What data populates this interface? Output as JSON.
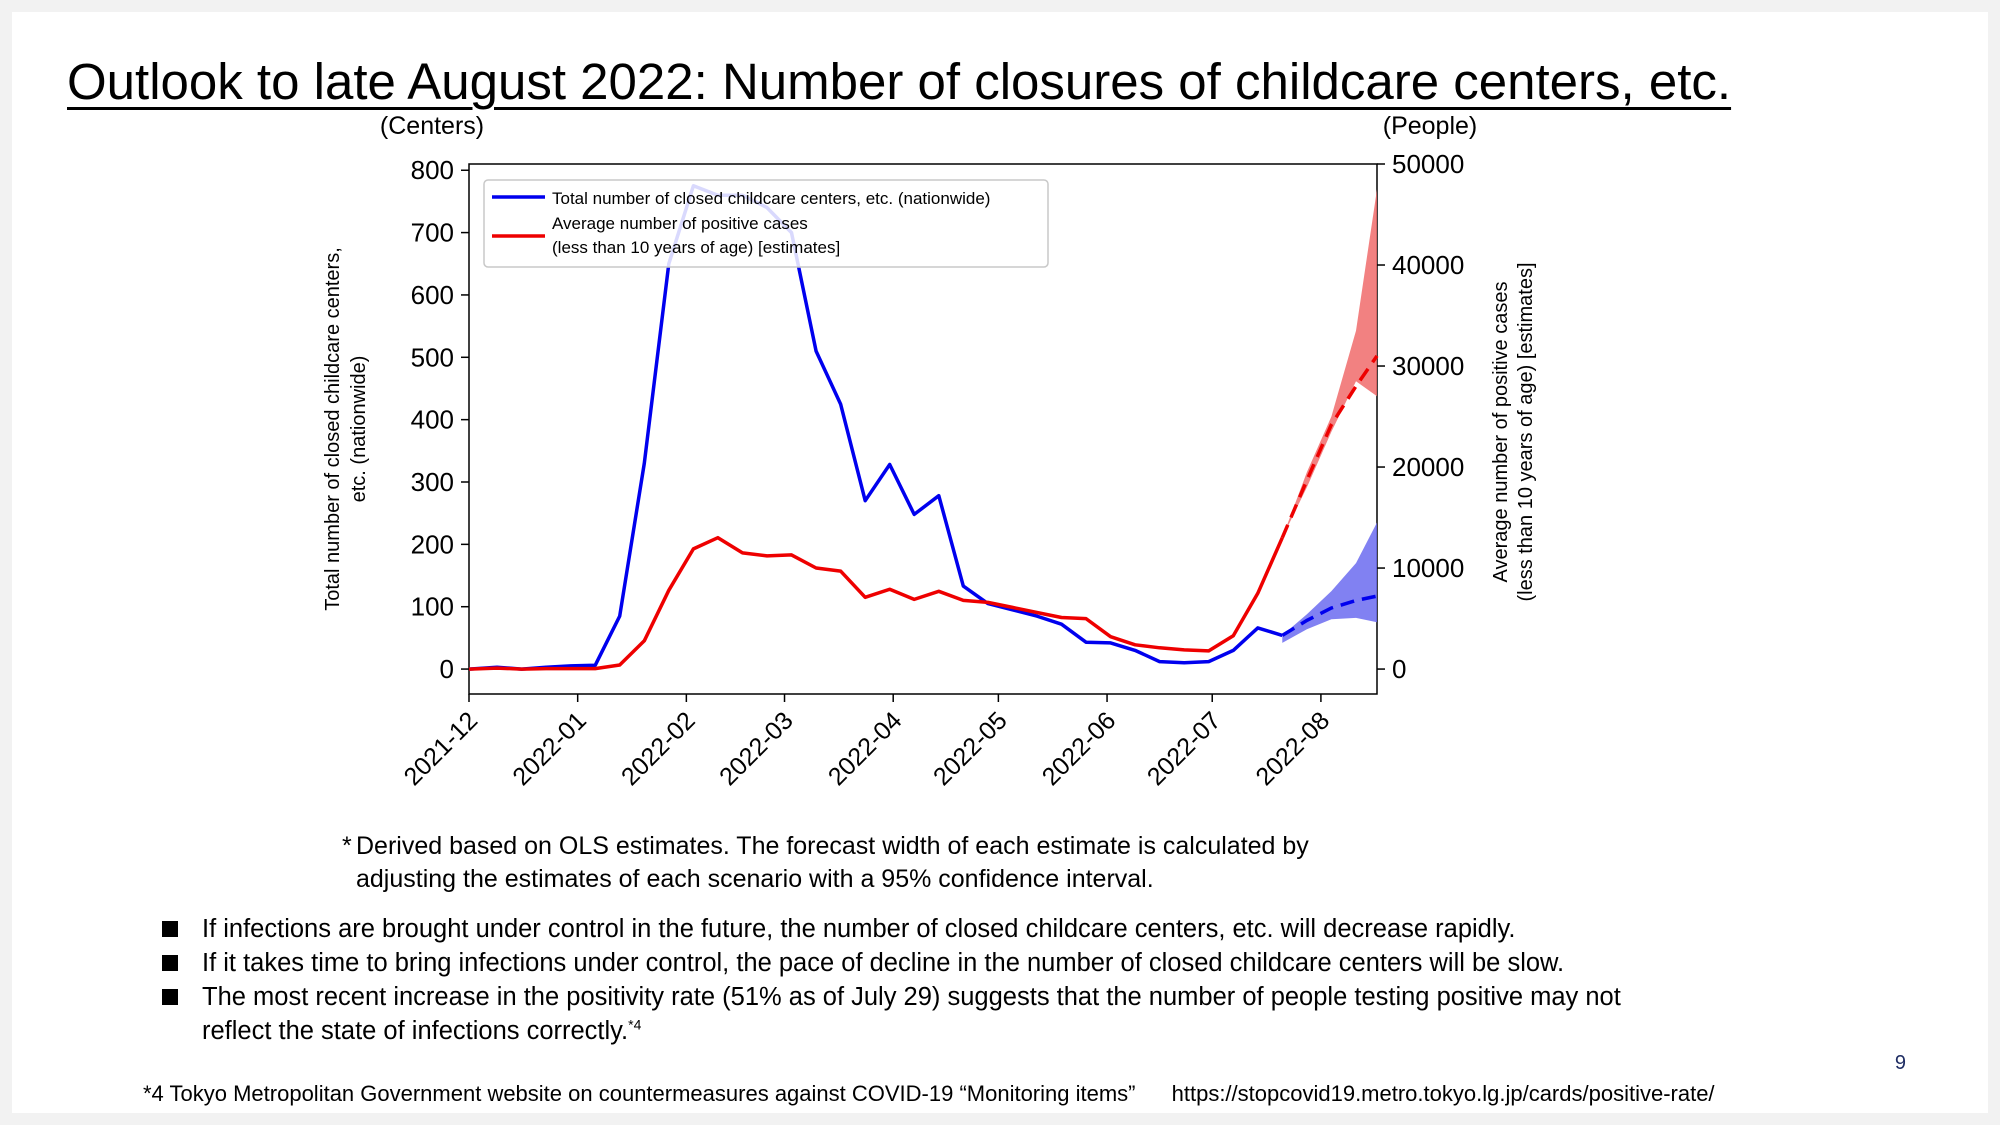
{
  "title": "Outlook to late August 2022: Number of closures of childcare centers, etc.",
  "chart_data": {
    "type": "line",
    "left_axis": {
      "unit": "(Centers)",
      "label_line1": "Total number of closed childcare centers,",
      "label_line2": "etc. (nationwide)",
      "range": [
        -40,
        810
      ],
      "ticks": [
        0,
        100,
        200,
        300,
        400,
        500,
        600,
        700,
        800
      ]
    },
    "right_axis": {
      "unit": "(People)",
      "label_line1": "Average number of positive cases",
      "label_line2": "(less than 10 years of age) [estimates]",
      "range": [
        -2469,
        50000
      ],
      "ticks": [
        0,
        10000,
        20000,
        30000,
        40000,
        50000
      ]
    },
    "x_axis": {
      "ticks": [
        "2021-12",
        "2022-01",
        "2022-02",
        "2022-03",
        "2022-04",
        "2022-05",
        "2022-06",
        "2022-07",
        "2022-08"
      ],
      "tick_dates": [
        "2021-12-01",
        "2022-01-01",
        "2022-02-01",
        "2022-03-01",
        "2022-04-01",
        "2022-05-01",
        "2022-06-01",
        "2022-07-01",
        "2022-08-01"
      ],
      "range": [
        "2021-12-01",
        "2022-08-17"
      ]
    },
    "legend": {
      "placement": "top-left",
      "entries": [
        {
          "label": "Total number of closed childcare centers, etc. (nationwide)",
          "color": "#0000ee"
        },
        {
          "label_line1": "Average number of positive cases",
          "label_line2": "(less than 10 years of age) [estimates]",
          "color": "#ee0000"
        }
      ]
    },
    "series": [
      {
        "name": "Total number of closed childcare centers, etc. (nationwide)",
        "axis": "left",
        "color": "#0000ee",
        "points": [
          [
            "2021-12-01",
            0
          ],
          [
            "2021-12-09",
            3
          ],
          [
            "2021-12-16",
            0
          ],
          [
            "2021-12-23",
            3
          ],
          [
            "2021-12-30",
            5
          ],
          [
            "2022-01-06",
            6
          ],
          [
            "2022-01-13",
            85
          ],
          [
            "2022-01-20",
            330
          ],
          [
            "2022-01-27",
            650
          ],
          [
            "2022-02-03",
            775
          ],
          [
            "2022-02-10",
            760
          ],
          [
            "2022-02-17",
            760
          ],
          [
            "2022-02-24",
            740
          ],
          [
            "2022-03-03",
            700
          ],
          [
            "2022-03-10",
            510
          ],
          [
            "2022-03-17",
            425
          ],
          [
            "2022-03-24",
            270
          ],
          [
            "2022-03-31",
            328
          ],
          [
            "2022-04-07",
            248
          ],
          [
            "2022-04-14",
            278
          ],
          [
            "2022-04-21",
            133
          ],
          [
            "2022-04-28",
            105
          ],
          [
            "2022-05-05",
            95
          ],
          [
            "2022-05-12",
            85
          ],
          [
            "2022-05-19",
            72
          ],
          [
            "2022-05-26",
            43
          ],
          [
            "2022-06-02",
            42
          ],
          [
            "2022-06-09",
            30
          ],
          [
            "2022-06-16",
            12
          ],
          [
            "2022-06-23",
            10
          ],
          [
            "2022-06-30",
            12
          ],
          [
            "2022-07-07",
            30
          ],
          [
            "2022-07-14",
            66
          ],
          [
            "2022-07-21",
            54
          ]
        ],
        "forecast": [
          [
            "2022-07-21",
            54
          ],
          [
            "2022-07-28",
            78
          ],
          [
            "2022-08-04",
            98
          ],
          [
            "2022-08-11",
            110
          ],
          [
            "2022-08-17",
            117
          ]
        ],
        "forecast_band": {
          "upper": [
            [
              "2022-07-21",
              54
            ],
            [
              "2022-07-28",
              88
            ],
            [
              "2022-08-04",
              125
            ],
            [
              "2022-08-11",
              170
            ],
            [
              "2022-08-17",
              235
            ]
          ],
          "lower": [
            [
              "2022-07-21",
              42
            ],
            [
              "2022-07-28",
              64
            ],
            [
              "2022-08-04",
              80
            ],
            [
              "2022-08-11",
              82
            ],
            [
              "2022-08-17",
              75
            ]
          ]
        }
      },
      {
        "name": "Average number of positive cases (less than 10 years of age) [estimates]",
        "axis": "right",
        "color": "#ee0000",
        "points": [
          [
            "2021-12-01",
            0
          ],
          [
            "2021-12-09",
            100
          ],
          [
            "2021-12-16",
            0
          ],
          [
            "2021-12-23",
            50
          ],
          [
            "2021-12-30",
            50
          ],
          [
            "2022-01-06",
            50
          ],
          [
            "2022-01-13",
            400
          ],
          [
            "2022-01-20",
            2800
          ],
          [
            "2022-01-27",
            7800
          ],
          [
            "2022-02-03",
            11900
          ],
          [
            "2022-02-10",
            13000
          ],
          [
            "2022-02-17",
            11500
          ],
          [
            "2022-02-24",
            11200
          ],
          [
            "2022-03-03",
            11300
          ],
          [
            "2022-03-10",
            10000
          ],
          [
            "2022-03-17",
            9700
          ],
          [
            "2022-03-24",
            7100
          ],
          [
            "2022-03-31",
            7900
          ],
          [
            "2022-04-07",
            6900
          ],
          [
            "2022-04-14",
            7700
          ],
          [
            "2022-04-21",
            6800
          ],
          [
            "2022-04-28",
            6600
          ],
          [
            "2022-05-05",
            6100
          ],
          [
            "2022-05-12",
            5600
          ],
          [
            "2022-05-19",
            5100
          ],
          [
            "2022-05-26",
            5000
          ],
          [
            "2022-06-02",
            3200
          ],
          [
            "2022-06-09",
            2400
          ],
          [
            "2022-06-16",
            2100
          ],
          [
            "2022-06-23",
            1900
          ],
          [
            "2022-06-30",
            1800
          ],
          [
            "2022-07-07",
            3300
          ],
          [
            "2022-07-14",
            7500
          ],
          [
            "2022-07-21",
            13000
          ]
        ],
        "forecast": [
          [
            "2022-07-21",
            13000
          ],
          [
            "2022-07-28",
            18700
          ],
          [
            "2022-08-04",
            24200
          ],
          [
            "2022-08-11",
            28000
          ],
          [
            "2022-08-17",
            31000
          ]
        ],
        "forecast_band": {
          "upper": [
            [
              "2022-07-21",
              13000
            ],
            [
              "2022-07-28",
              19500
            ],
            [
              "2022-08-04",
              25000
            ],
            [
              "2022-08-11",
              33500
            ],
            [
              "2022-08-17",
              47500
            ]
          ],
          "lower": [
            [
              "2022-07-21",
              13000
            ],
            [
              "2022-07-28",
              18000
            ],
            [
              "2022-08-04",
              23500
            ],
            [
              "2022-08-11",
              28500
            ],
            [
              "2022-08-17",
              27000
            ]
          ]
        }
      }
    ]
  },
  "note": {
    "star": "*",
    "line1": "Derived based on OLS estimates. The forecast width of each estimate is calculated by",
    "line2": "adjusting the estimates of each scenario with a 95% confidence interval."
  },
  "bullets": [
    "If infections are brought under control in the future, the number of closed childcare centers, etc. will decrease rapidly.",
    "If it takes time to bring infections under control, the pace of decline in the number of closed childcare centers will be slow.",
    "The most recent increase in the positivity rate (51% as of July 29) suggests that the number of people testing positive may not",
    "reflect the state of infections correctly."
  ],
  "bullet_sup": "*4",
  "page_number": "9",
  "footnote": {
    "text": "*4 Tokyo Metropolitan Government website on countermeasures against COVID-19 “Monitoring items”",
    "url": "https://stopcovid19.metro.tokyo.lg.jp/cards/positive-rate/"
  }
}
